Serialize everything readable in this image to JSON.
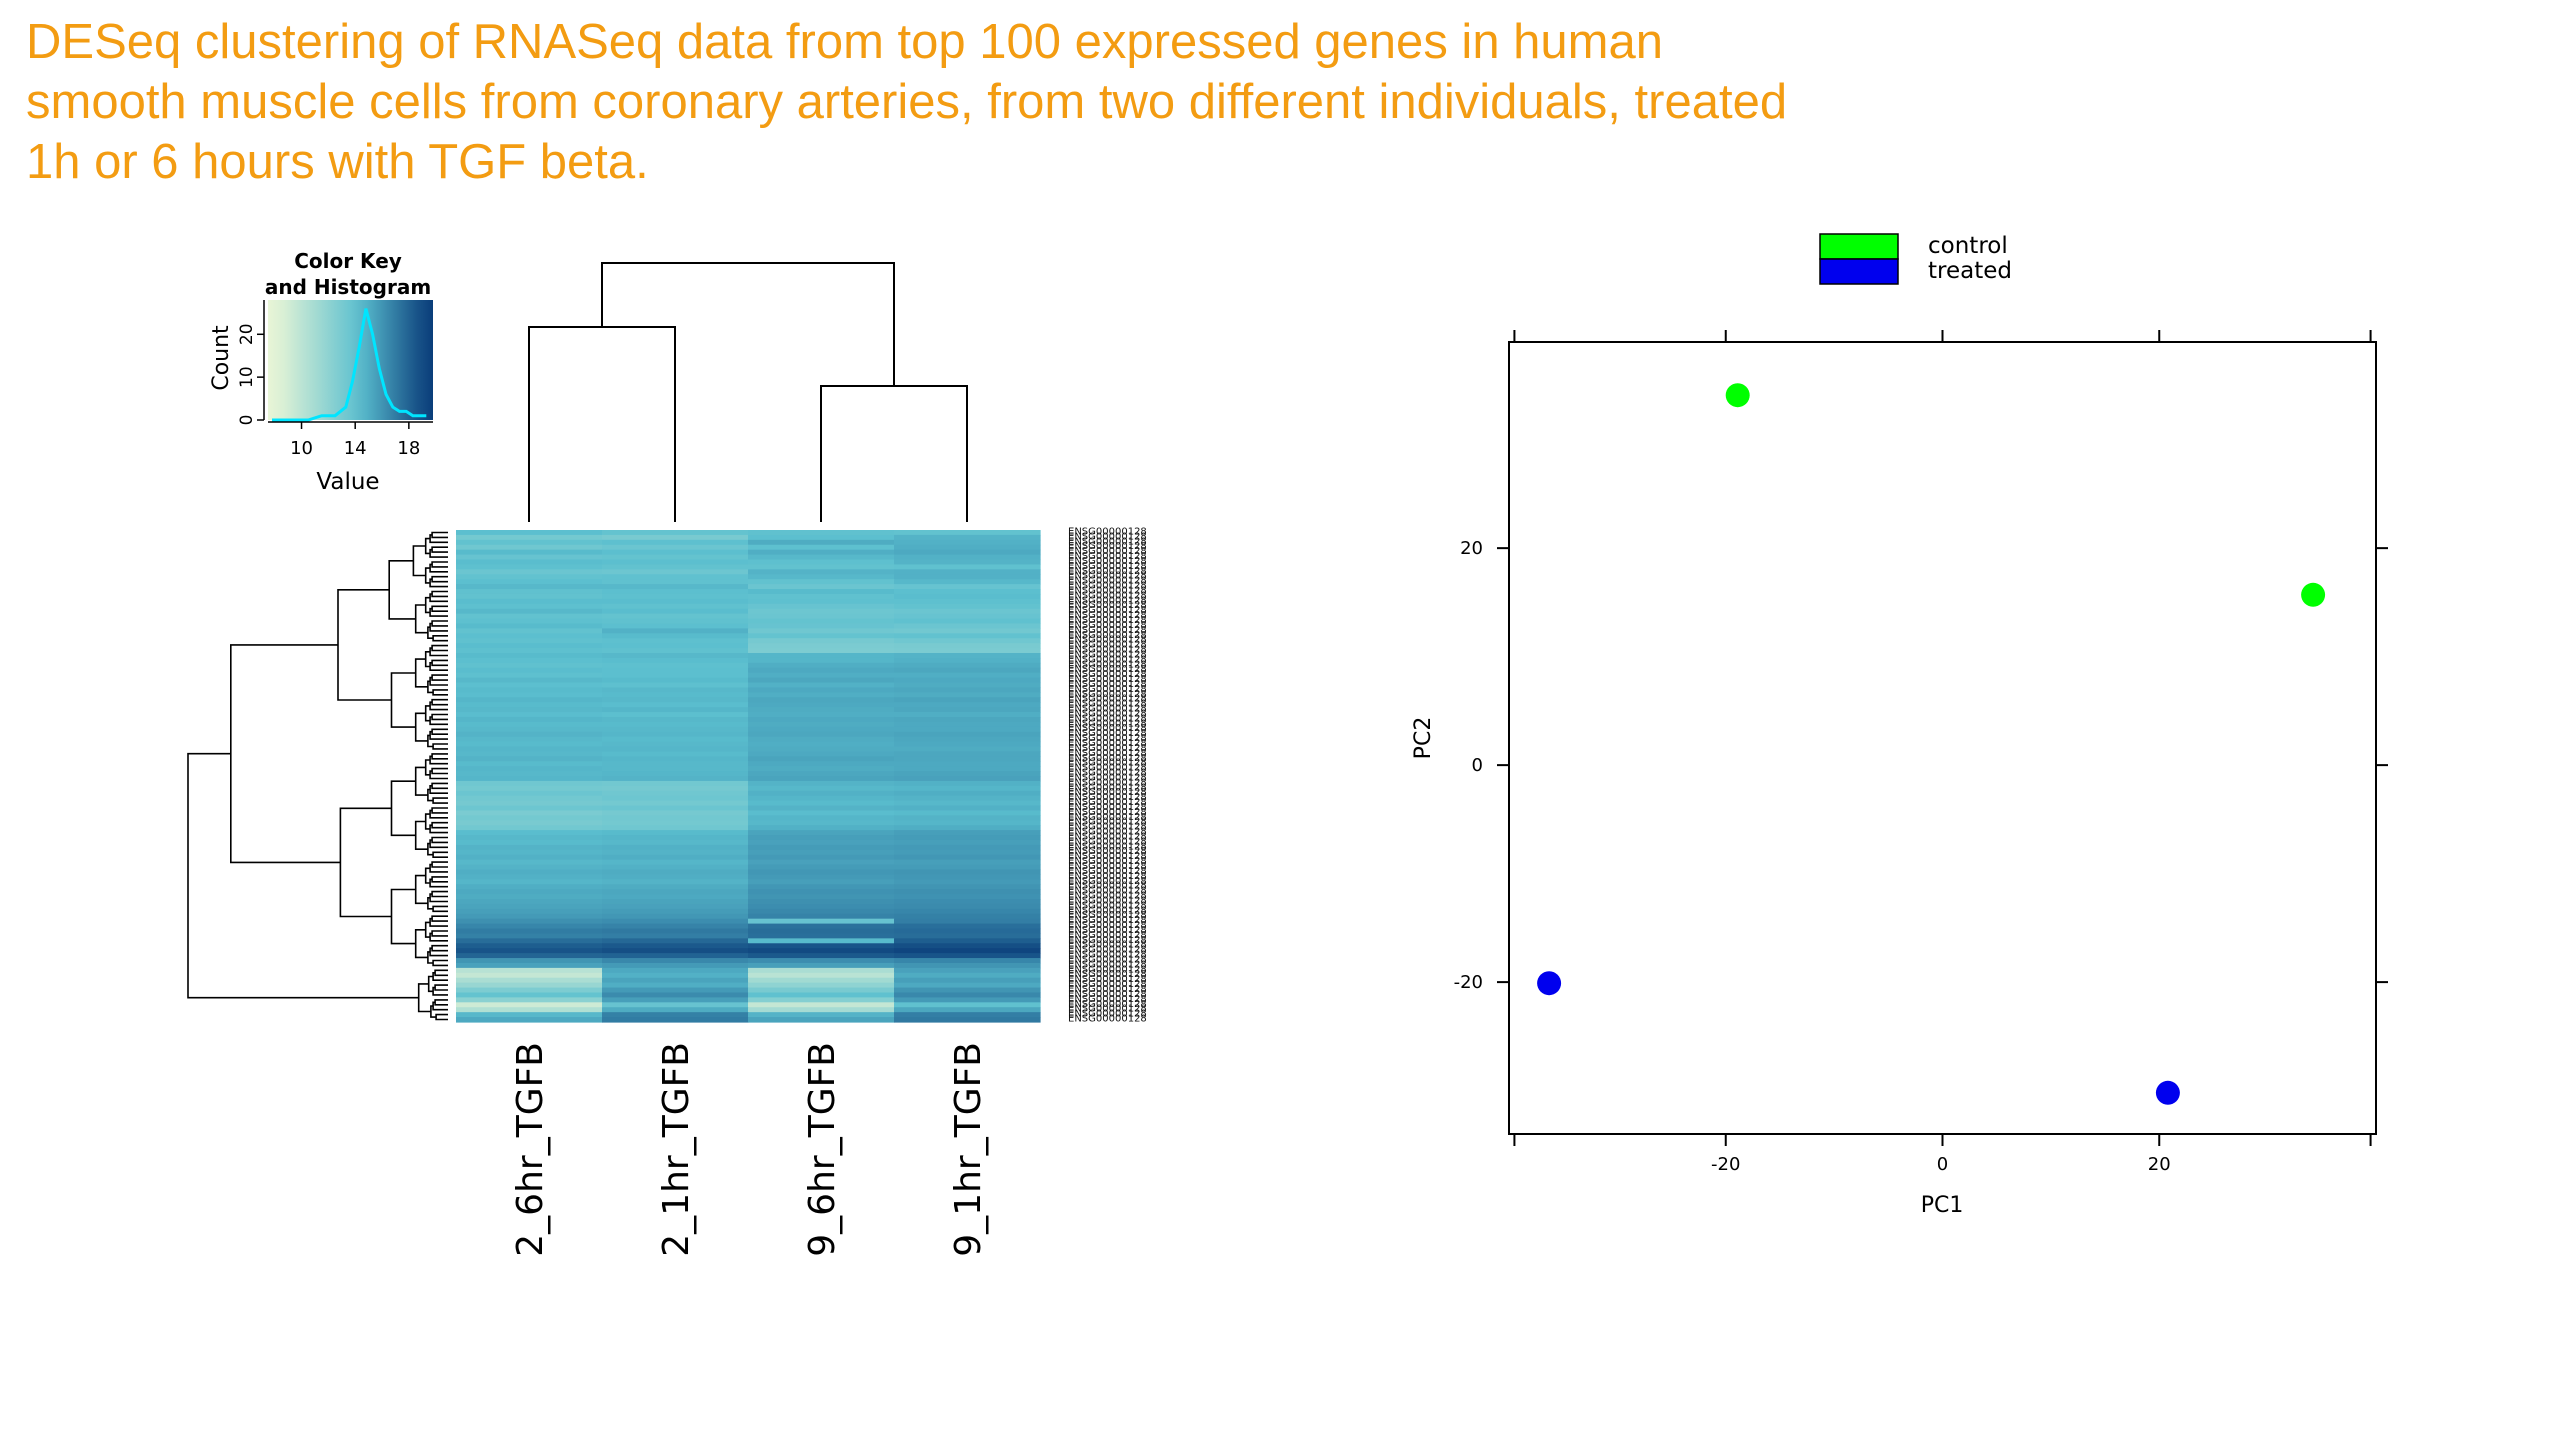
{
  "title_lines": [
    "DESeq clustering of RNASeq data from top 100 expressed genes in human",
    "smooth muscle cells from coronary arteries, from two different individuals, treated",
    "1h or 6 hours with TGF beta."
  ],
  "colors": {
    "title": "#f39c12",
    "control": "#00ff00",
    "treated": "#0000ee",
    "heat_low": "#e8f5d6",
    "heat_mid": "#5bbfcf",
    "heat_high": "#0a3d7a",
    "histogram_line": "#00e5ff"
  },
  "chart_data": [
    {
      "type": "heatmap",
      "color_key": {
        "title_line1": "Color Key",
        "title_line2": "and Histogram",
        "xlabel": "Value",
        "ylabel": "Count",
        "xticks": [
          10,
          14,
          18
        ],
        "yticks": [
          0,
          10,
          20
        ],
        "xlim": [
          7.5,
          19.8
        ],
        "ylim": [
          0,
          28
        ],
        "histogram": [
          {
            "x": 7.8,
            "y": 0
          },
          {
            "x": 10.5,
            "y": 0
          },
          {
            "x": 11.5,
            "y": 1
          },
          {
            "x": 12.5,
            "y": 1
          },
          {
            "x": 13.3,
            "y": 3
          },
          {
            "x": 13.8,
            "y": 9
          },
          {
            "x": 14.3,
            "y": 17
          },
          {
            "x": 14.8,
            "y": 26
          },
          {
            "x": 15.3,
            "y": 20
          },
          {
            "x": 15.8,
            "y": 12
          },
          {
            "x": 16.3,
            "y": 6
          },
          {
            "x": 16.8,
            "y": 3
          },
          {
            "x": 17.3,
            "y": 2
          },
          {
            "x": 17.8,
            "y": 2
          },
          {
            "x": 18.3,
            "y": 1
          },
          {
            "x": 19.3,
            "y": 1
          }
        ]
      },
      "columns": [
        "2_6hr_TGFB",
        "2_1hr_TGFB",
        "9_6hr_TGFB",
        "9_1hr_TGFB"
      ],
      "row_label_prefix": "ENSG00000128",
      "row_count": 100,
      "value_range": [
        8,
        19.5
      ],
      "rows": [
        [
          14.3,
          13.9,
          14.1,
          14.0
        ],
        [
          13.2,
          13.0,
          14.3,
          14.8
        ],
        [
          14.0,
          14.2,
          15.1,
          14.9
        ],
        [
          13.4,
          13.6,
          14.2,
          15.0
        ],
        [
          14.5,
          14.3,
          15.0,
          15.2
        ],
        [
          13.8,
          13.9,
          14.6,
          14.9
        ],
        [
          14.4,
          14.3,
          14.2,
          14.8
        ],
        [
          14.2,
          14.0,
          14.0,
          14.1
        ],
        [
          13.6,
          13.5,
          14.8,
          14.9
        ],
        [
          14.0,
          14.1,
          14.6,
          14.9
        ],
        [
          14.3,
          14.1,
          14.0,
          14.6
        ],
        [
          14.6,
          14.6,
          13.6,
          13.8
        ],
        [
          14.1,
          14.3,
          14.5,
          14.3
        ],
        [
          14.0,
          14.2,
          14.1,
          14.4
        ],
        [
          14.4,
          14.4,
          14.2,
          14.2
        ],
        [
          14.2,
          14.1,
          13.8,
          14.0
        ],
        [
          14.6,
          14.4,
          13.5,
          13.6
        ],
        [
          14.0,
          13.9,
          13.6,
          13.8
        ],
        [
          14.2,
          14.1,
          13.9,
          14.1
        ],
        [
          14.5,
          14.3,
          13.8,
          13.6
        ],
        [
          14.0,
          14.9,
          13.4,
          13.3
        ],
        [
          14.3,
          14.5,
          13.9,
          14.0
        ],
        [
          14.1,
          14.2,
          13.1,
          13.4
        ],
        [
          14.4,
          14.3,
          12.9,
          13.0
        ],
        [
          14.2,
          14.1,
          12.8,
          12.9
        ],
        [
          14.5,
          14.6,
          14.7,
          14.8
        ],
        [
          14.3,
          14.4,
          14.7,
          14.9
        ],
        [
          14.1,
          14.2,
          15.0,
          15.1
        ],
        [
          14.4,
          14.3,
          15.2,
          15.3
        ],
        [
          14.2,
          14.3,
          15.0,
          15.0
        ],
        [
          14.6,
          14.5,
          15.3,
          15.2
        ],
        [
          14.3,
          14.2,
          14.9,
          15.1
        ],
        [
          14.5,
          14.6,
          15.2,
          15.3
        ],
        [
          14.4,
          14.5,
          15.0,
          15.1
        ],
        [
          14.7,
          14.6,
          15.3,
          15.4
        ],
        [
          14.5,
          14.4,
          15.2,
          15.2
        ],
        [
          14.6,
          14.7,
          15.1,
          15.3
        ],
        [
          14.4,
          14.3,
          15.0,
          15.0
        ],
        [
          14.7,
          14.6,
          15.2,
          15.3
        ],
        [
          14.5,
          14.5,
          15.1,
          15.2
        ],
        [
          14.6,
          14.6,
          15.2,
          15.2
        ],
        [
          14.8,
          14.7,
          15.3,
          15.4
        ],
        [
          14.6,
          14.5,
          15.1,
          15.3
        ],
        [
          14.5,
          14.6,
          15.0,
          15.2
        ],
        [
          14.7,
          14.7,
          15.1,
          15.1
        ],
        [
          14.6,
          14.5,
          15.2,
          15.3
        ],
        [
          14.8,
          14.7,
          15.4,
          15.3
        ],
        [
          14.5,
          14.6,
          15.2,
          15.2
        ],
        [
          14.7,
          14.6,
          15.1,
          15.2
        ],
        [
          14.6,
          14.7,
          15.3,
          15.4
        ],
        [
          14.7,
          14.8,
          15.4,
          15.5
        ],
        [
          13.4,
          13.3,
          14.8,
          14.9
        ],
        [
          13.2,
          13.1,
          14.6,
          14.7
        ],
        [
          13.6,
          13.4,
          14.9,
          15.0
        ],
        [
          13.3,
          13.5,
          14.7,
          14.8
        ],
        [
          13.1,
          13.2,
          14.5,
          14.6
        ],
        [
          13.5,
          13.6,
          14.8,
          14.9
        ],
        [
          12.9,
          13.1,
          14.4,
          14.5
        ],
        [
          13.2,
          13.3,
          14.7,
          14.8
        ],
        [
          13.0,
          13.2,
          14.6,
          14.7
        ],
        [
          13.3,
          13.4,
          14.9,
          15.0
        ],
        [
          14.4,
          14.5,
          15.4,
          15.6
        ],
        [
          14.6,
          14.7,
          15.6,
          15.7
        ],
        [
          14.5,
          14.6,
          15.5,
          15.6
        ],
        [
          14.8,
          14.9,
          15.7,
          15.8
        ],
        [
          14.7,
          14.8,
          15.6,
          15.7
        ],
        [
          14.9,
          15.0,
          15.8,
          15.9
        ],
        [
          14.6,
          14.7,
          15.5,
          15.6
        ],
        [
          14.8,
          14.9,
          15.7,
          15.7
        ],
        [
          15.0,
          15.1,
          15.9,
          16.0
        ],
        [
          14.9,
          15.0,
          15.8,
          15.9
        ],
        [
          14.7,
          14.8,
          15.6,
          15.8
        ],
        [
          15.0,
          15.1,
          15.9,
          16.0
        ],
        [
          15.2,
          15.3,
          16.1,
          16.2
        ],
        [
          15.1,
          15.2,
          16.0,
          16.1
        ],
        [
          15.3,
          15.4,
          16.2,
          16.3
        ],
        [
          15.4,
          15.5,
          16.3,
          16.4
        ],
        [
          15.6,
          15.7,
          16.5,
          16.6
        ],
        [
          15.8,
          15.9,
          16.7,
          16.8
        ],
        [
          16.2,
          16.3,
          13.8,
          16.9
        ],
        [
          16.6,
          16.7,
          17.4,
          17.5
        ],
        [
          17.0,
          17.1,
          17.6,
          17.7
        ],
        [
          16.8,
          16.9,
          17.5,
          17.6
        ],
        [
          17.6,
          17.8,
          14.5,
          18.2
        ],
        [
          18.2,
          18.4,
          18.6,
          18.8
        ],
        [
          18.6,
          18.8,
          19.0,
          19.2
        ],
        [
          17.9,
          18.0,
          18.4,
          18.6
        ],
        [
          16.0,
          16.5,
          16.3,
          16.6
        ],
        [
          15.5,
          15.8,
          15.6,
          16.0
        ],
        [
          10.2,
          15.2,
          10.8,
          15.5
        ],
        [
          9.6,
          14.9,
          10.1,
          15.1
        ],
        [
          10.8,
          15.4,
          11.2,
          15.6
        ],
        [
          11.6,
          15.0,
          12.0,
          15.2
        ],
        [
          12.8,
          15.8,
          13.0,
          16.0
        ],
        [
          13.9,
          16.4,
          14.1,
          16.5
        ],
        [
          12.2,
          15.6,
          12.5,
          15.8
        ],
        [
          9.2,
          13.8,
          9.6,
          14.1
        ],
        [
          10.5,
          15.1,
          11.0,
          15.3
        ],
        [
          14.6,
          16.8,
          14.8,
          16.9
        ],
        [
          15.2,
          17.0,
          15.4,
          17.1
        ]
      ]
    },
    {
      "type": "scatter",
      "xlabel": "PC1",
      "ylabel": "PC2",
      "xlim": [
        -40,
        40
      ],
      "ylim": [
        -34,
        39
      ],
      "xticks": [
        -20,
        0,
        20
      ],
      "yticks": [
        -20,
        0,
        20
      ],
      "legend_position": "top",
      "series": [
        {
          "name": "control",
          "color": "#00ff00",
          "points": [
            {
              "x": -18.9,
              "y": 34.1
            },
            {
              "x": 34.2,
              "y": 15.7
            }
          ]
        },
        {
          "name": "treated",
          "color": "#0000ee",
          "points": [
            {
              "x": -36.3,
              "y": -20.1
            },
            {
              "x": 20.8,
              "y": -30.2
            }
          ]
        }
      ]
    }
  ]
}
